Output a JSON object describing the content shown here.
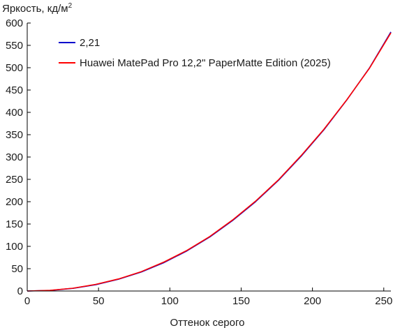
{
  "chart_data": {
    "type": "line",
    "ylabel": "Яркость, кд/м",
    "ylabel_sup": "2",
    "xlabel": "Оттенок серого",
    "xlim": [
      0,
      255
    ],
    "ylim": [
      0,
      600
    ],
    "xticks": [
      0,
      50,
      100,
      150,
      200,
      250
    ],
    "yticks": [
      0,
      50,
      100,
      150,
      200,
      250,
      300,
      350,
      400,
      450,
      500,
      550,
      600
    ],
    "grid": false,
    "legend_position": "top-left",
    "series": [
      {
        "name": "2,21",
        "color": "#0000cc",
        "x": [
          0,
          16,
          32,
          48,
          64,
          80,
          96,
          112,
          128,
          144,
          160,
          176,
          192,
          208,
          224,
          240,
          255
        ],
        "y": [
          0,
          1.3,
          5.9,
          14.1,
          26.4,
          42.6,
          63.8,
          89.9,
          120.9,
          157.8,
          199.7,
          247.3,
          301.5,
          361.0,
          427.5,
          499.7,
          580.0
        ]
      },
      {
        "name": "Huawei MatePad Pro 12,2\" PaperMatte Edition (2025)",
        "color": "#ff0000",
        "x": [
          0,
          16,
          32,
          48,
          64,
          80,
          96,
          112,
          128,
          144,
          160,
          176,
          192,
          208,
          224,
          240,
          255
        ],
        "y": [
          0,
          1.5,
          6.2,
          14.8,
          27.0,
          43.5,
          65.0,
          91.0,
          122.0,
          159.0,
          201.0,
          248.5,
          303.0,
          362.0,
          428.0,
          499.0,
          578.0
        ]
      }
    ]
  }
}
